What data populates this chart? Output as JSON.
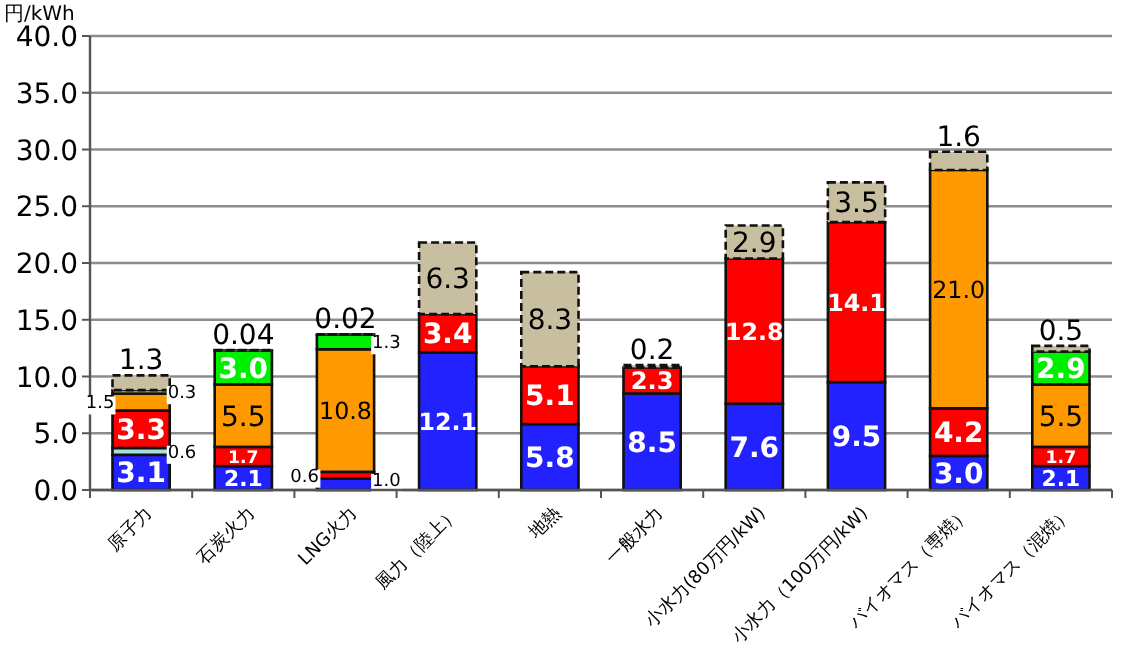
{
  "chart_data": {
    "type": "bar",
    "stacked": true,
    "ylabel": "円/kWh",
    "categories": [
      "原子力",
      "石炭火力",
      "LNG火力",
      "風力（陸上）",
      "地熱",
      "一般水力",
      "小水力(80万円/kW)",
      "小水力（100万円/kW)",
      "バイオマス（専焼）",
      "バイオマス（混焼）"
    ],
    "series": [
      {
        "color": "#2222ff",
        "values": [
          3.1,
          2.1,
          1.0,
          12.1,
          5.8,
          8.5,
          7.6,
          9.5,
          3.0,
          2.1
        ],
        "value_labels": [
          "3.1",
          "2.1",
          "1.0",
          "12.1",
          "5.8",
          "8.5",
          "7.6",
          "9.5",
          "3.0",
          "2.1"
        ]
      },
      {
        "color": "#a8e0dc",
        "values": [
          0.6,
          null,
          null,
          null,
          null,
          null,
          null,
          null,
          null,
          null
        ]
      },
      {
        "color": "#ff0000",
        "values": [
          3.3,
          1.7,
          0.6,
          3.4,
          5.1,
          2.3,
          12.8,
          14.1,
          4.2,
          1.7
        ]
      },
      {
        "color": "#ff9900",
        "values": [
          1.5,
          5.5,
          10.8,
          null,
          null,
          null,
          null,
          null,
          21.0,
          5.5
        ],
        "value_labels": [
          "1.5",
          "5.5",
          "10.8",
          null,
          null,
          null,
          null,
          null,
          "21.0",
          "5.5"
        ]
      },
      {
        "color": "#ffff66",
        "values": [
          0.3,
          null,
          null,
          null,
          null,
          null,
          null,
          null,
          null,
          null
        ]
      },
      {
        "color": "#00ee00",
        "values": [
          null,
          3.0,
          1.3,
          null,
          null,
          null,
          null,
          null,
          null,
          2.9
        ],
        "value_labels": [
          null,
          "3.0",
          "1.3",
          null,
          null,
          null,
          null,
          null,
          null,
          "2.9"
        ]
      },
      {
        "color": "#c8bea0",
        "line_style": "dashed",
        "values": [
          1.3,
          0.04,
          0.02,
          6.3,
          8.3,
          0.2,
          2.9,
          3.5,
          1.6,
          0.5
        ]
      }
    ],
    "ylim": [
      0,
      40
    ],
    "yticks": [
      {
        "value": 0,
        "label": "0.0"
      },
      {
        "value": 5,
        "label": "5.0"
      },
      {
        "value": 10,
        "label": "10.0"
      },
      {
        "value": 15,
        "label": "15.0"
      },
      {
        "value": 20,
        "label": "20.0"
      },
      {
        "value": 25,
        "label": "25.0"
      },
      {
        "value": 30,
        "label": "30.0"
      },
      {
        "value": 35,
        "label": "35.0"
      },
      {
        "value": 40,
        "label": "40.0"
      }
    ],
    "grid": "y",
    "data_labels": true
  }
}
